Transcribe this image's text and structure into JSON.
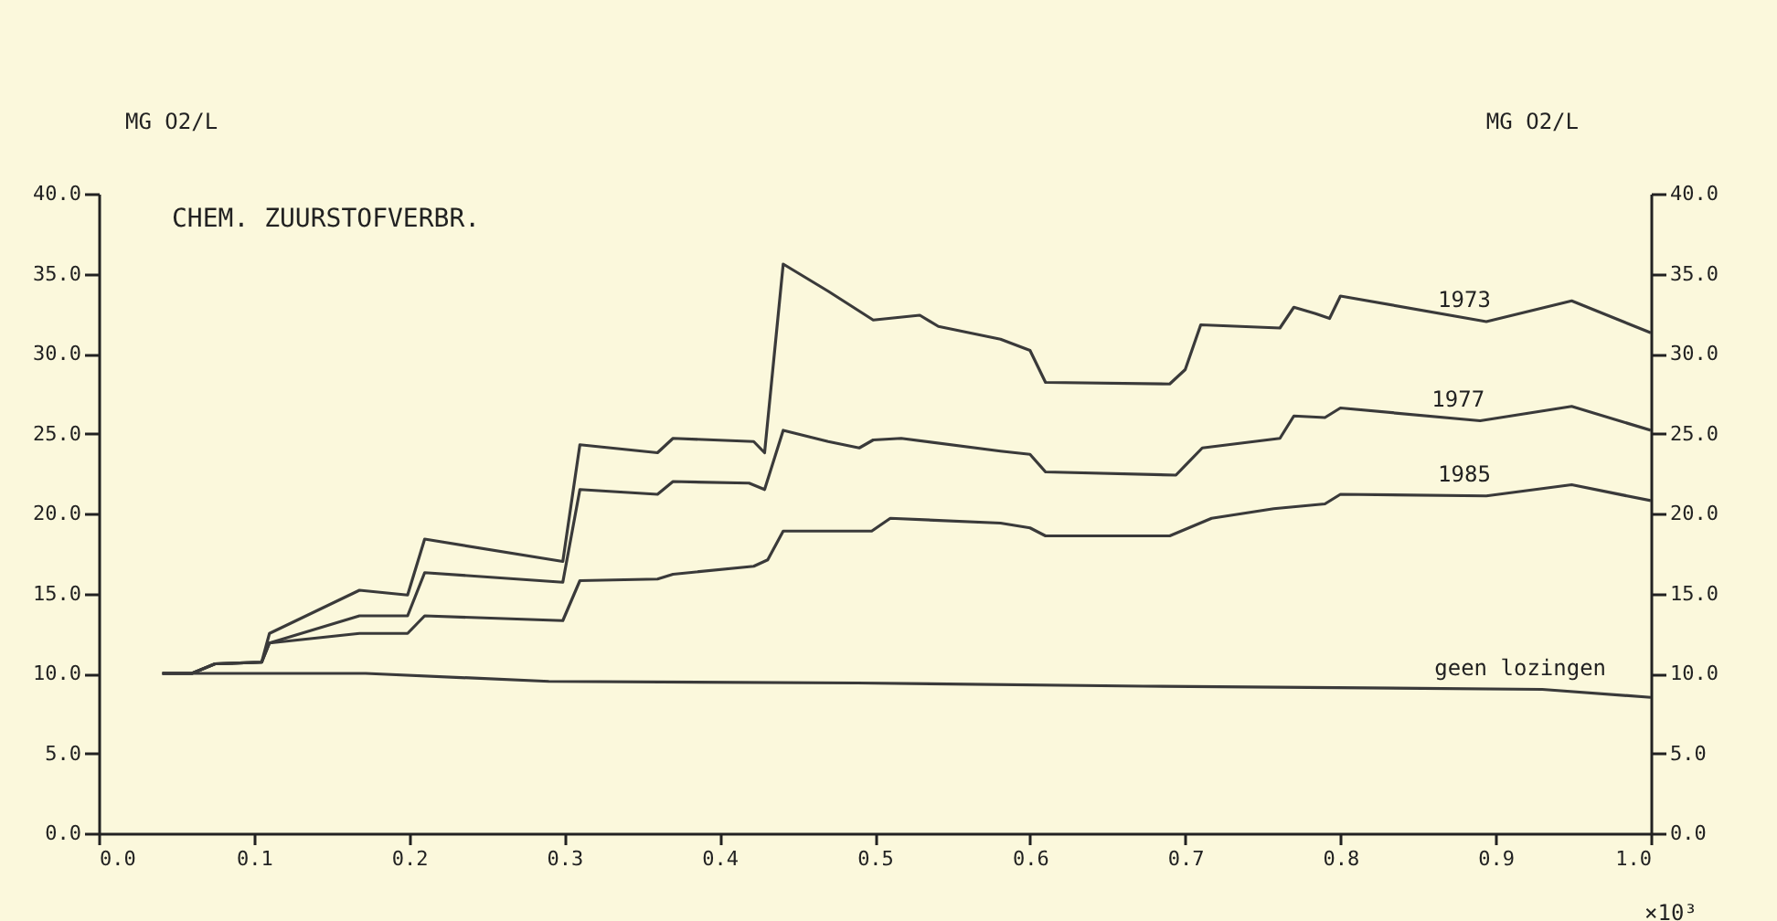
{
  "chart_data": {
    "type": "line",
    "title": "CHEM. ZUURSTOFVERBR.",
    "ylabel": "MG O2/L",
    "y2label": "MG O2/L",
    "xlabel": "×10³",
    "xlim": [
      0,
      1
    ],
    "xticks": [
      {
        "value": 0,
        "label": "0.0"
      },
      {
        "value": 0.1,
        "label": "0.1"
      },
      {
        "value": 0.2,
        "label": "0.2"
      },
      {
        "value": 0.3,
        "label": "0.3"
      },
      {
        "value": 0.4,
        "label": "0.4"
      },
      {
        "value": 0.5,
        "label": "0.5"
      },
      {
        "value": 0.6,
        "label": "0.6"
      },
      {
        "value": 0.7,
        "label": "0.7"
      },
      {
        "value": 0.8,
        "label": "0.8"
      },
      {
        "value": 0.9,
        "label": "0.9"
      },
      {
        "value": 1,
        "label": "1.0"
      }
    ],
    "ylim": [
      0,
      40
    ],
    "yticks": [
      {
        "value": 0,
        "label": "0.0"
      },
      {
        "value": 5,
        "label": "5.0"
      },
      {
        "value": 10,
        "label": "10.0"
      },
      {
        "value": 15,
        "label": "15.0"
      },
      {
        "value": 20,
        "label": "20.0"
      },
      {
        "value": 25,
        "label": "25.0"
      },
      {
        "value": 30,
        "label": "30.0"
      },
      {
        "value": 35,
        "label": "35.0"
      },
      {
        "value": 40,
        "label": "40.0"
      }
    ],
    "y2lim": [
      0,
      40
    ],
    "y2ticks": [
      {
        "value": 0,
        "label": "0.0"
      },
      {
        "value": 5,
        "label": "5.0"
      },
      {
        "value": 10,
        "label": "10.0"
      },
      {
        "value": 15,
        "label": "15.0"
      },
      {
        "value": 20,
        "label": "20.0"
      },
      {
        "value": 25,
        "label": "25.0"
      },
      {
        "value": 30,
        "label": "30.0"
      },
      {
        "value": 35,
        "label": "35.0"
      },
      {
        "value": 40,
        "label": "40.0"
      }
    ],
    "marker": "none",
    "line_style": "solid",
    "series": [
      {
        "name": "1973",
        "color": "#3a3a3a",
        "x": [
          0.041,
          0.06,
          0.075,
          0.105,
          0.11,
          0.168,
          0.199,
          0.21,
          0.299,
          0.31,
          0.36,
          0.37,
          0.422,
          0.429,
          0.441,
          0.47,
          0.499,
          0.529,
          0.541,
          0.581,
          0.6,
          0.61,
          0.69,
          0.7,
          0.71,
          0.761,
          0.77,
          0.784,
          0.793,
          0.8,
          0.894,
          0.949,
          1.0
        ],
        "values": [
          10.0,
          10.0,
          10.6,
          10.7,
          12.5,
          15.2,
          14.9,
          18.4,
          17.0,
          24.3,
          23.8,
          24.7,
          24.5,
          23.8,
          35.6,
          33.9,
          32.1,
          32.4,
          31.7,
          30.9,
          30.2,
          28.2,
          28.1,
          29.0,
          31.8,
          31.6,
          32.9,
          32.5,
          32.2,
          33.6,
          32.0,
          33.3,
          31.3
        ]
      },
      {
        "name": "1977",
        "color": "#3a3a3a",
        "x": [
          0.041,
          0.06,
          0.075,
          0.105,
          0.11,
          0.168,
          0.199,
          0.21,
          0.299,
          0.31,
          0.36,
          0.37,
          0.419,
          0.429,
          0.441,
          0.47,
          0.49,
          0.499,
          0.517,
          0.581,
          0.6,
          0.61,
          0.694,
          0.711,
          0.761,
          0.77,
          0.79,
          0.8,
          0.89,
          0.949,
          1.0
        ],
        "values": [
          10.0,
          10.0,
          10.6,
          10.7,
          11.9,
          13.6,
          13.6,
          16.3,
          15.7,
          21.5,
          21.2,
          22.0,
          21.9,
          21.5,
          25.2,
          24.5,
          24.1,
          24.6,
          24.7,
          23.9,
          23.7,
          22.6,
          22.4,
          24.1,
          24.7,
          26.1,
          26.0,
          26.6,
          25.8,
          26.7,
          25.2
        ]
      },
      {
        "name": "1985",
        "color": "#3a3a3a",
        "x": [
          0.041,
          0.06,
          0.075,
          0.105,
          0.11,
          0.168,
          0.199,
          0.21,
          0.299,
          0.31,
          0.36,
          0.37,
          0.422,
          0.431,
          0.441,
          0.498,
          0.51,
          0.581,
          0.6,
          0.61,
          0.69,
          0.717,
          0.757,
          0.79,
          0.8,
          0.894,
          0.949,
          1.0
        ],
        "values": [
          10.0,
          10.0,
          10.6,
          10.7,
          11.9,
          12.5,
          12.5,
          13.6,
          13.3,
          15.8,
          15.9,
          16.2,
          16.7,
          17.1,
          18.9,
          18.9,
          19.7,
          19.4,
          19.1,
          18.6,
          18.6,
          19.7,
          20.3,
          20.6,
          21.2,
          21.1,
          21.8,
          20.8
        ]
      },
      {
        "name": "geen lozingen",
        "color": "#3a3a3a",
        "x": [
          0.041,
          0.172,
          0.29,
          0.489,
          0.673,
          0.93,
          1.0
        ],
        "values": [
          10.0,
          10.0,
          9.5,
          9.4,
          9.2,
          9.0,
          8.5
        ]
      }
    ]
  }
}
